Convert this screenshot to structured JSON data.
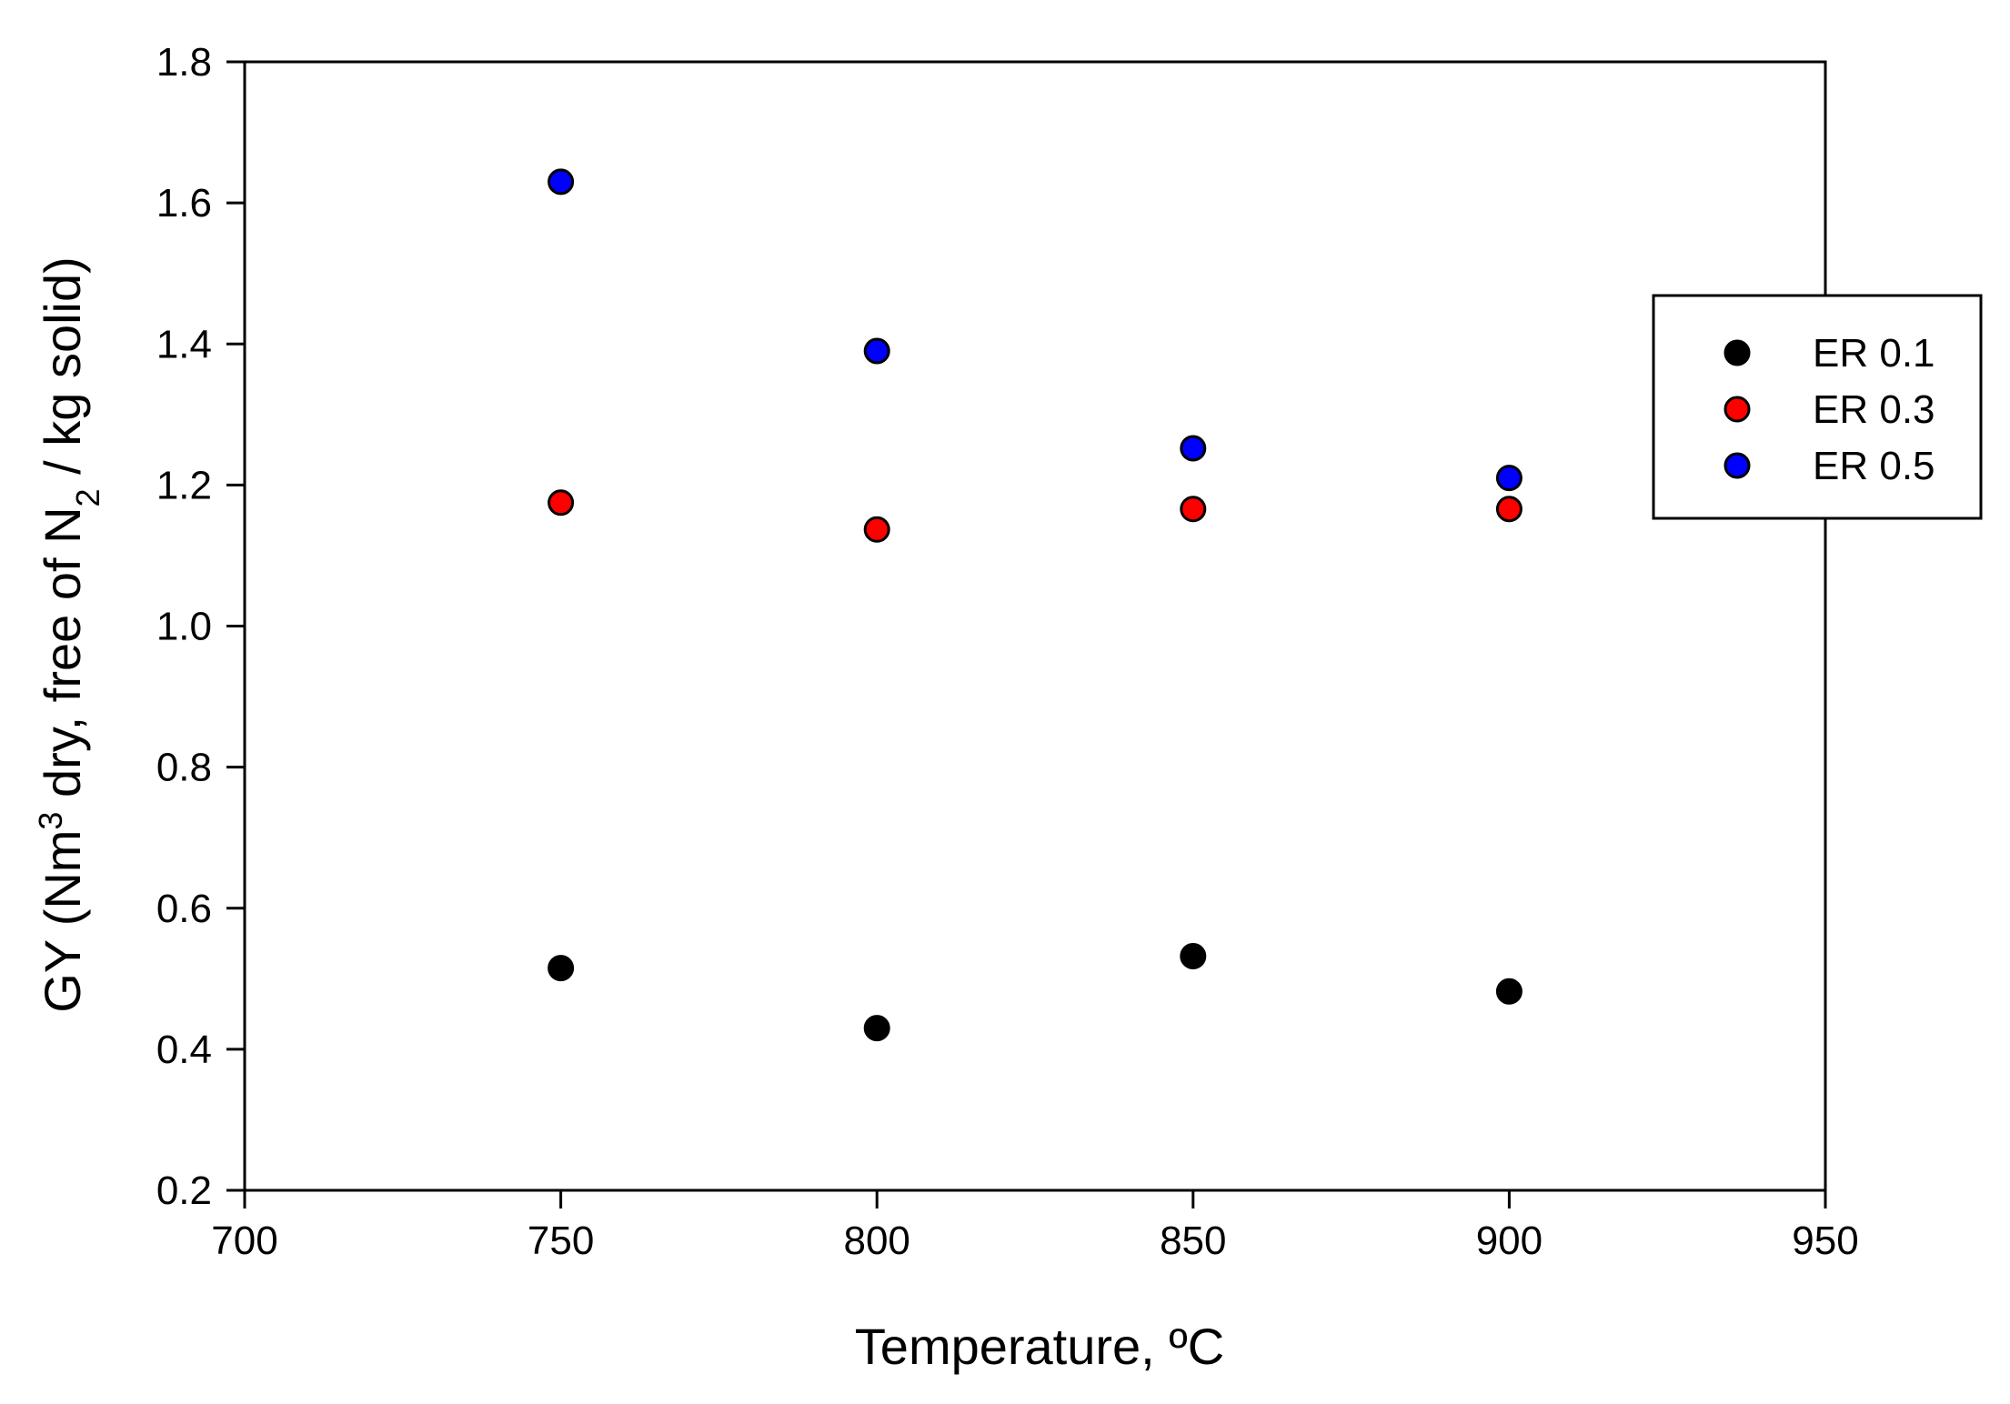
{
  "chart_data": {
    "type": "scatter",
    "title": "",
    "xlabel": "Temperature, ºC",
    "ylabel": {
      "parts": [
        {
          "text": "GY (Nm",
          "style": "normal"
        },
        {
          "text": "3",
          "style": "sup"
        },
        {
          "text": " dry, free of N",
          "style": "normal"
        },
        {
          "text": "2",
          "style": "sub"
        },
        {
          "text": " / kg solid)",
          "style": "normal"
        }
      ]
    },
    "xlim": [
      700,
      950
    ],
    "ylim": [
      0.2,
      1.8
    ],
    "x_ticks": [
      700,
      750,
      800,
      850,
      900,
      950
    ],
    "y_ticks": [
      0.2,
      0.4,
      0.6,
      0.8,
      1.0,
      1.2,
      1.4,
      1.6,
      1.8
    ],
    "x_tick_labels": [
      "700",
      "750",
      "800",
      "850",
      "900",
      "950"
    ],
    "y_tick_labels": [
      "0.2",
      "0.4",
      "0.6",
      "0.8",
      "1.0",
      "1.2",
      "1.4",
      "1.6",
      "1.8"
    ],
    "grid": false,
    "legend_position": "right, outside upper",
    "series": [
      {
        "name": "ER 0.1",
        "color": "#000000",
        "x": [
          750,
          800,
          850,
          900
        ],
        "y": [
          0.515,
          0.43,
          0.532,
          0.482
        ]
      },
      {
        "name": "ER 0.3",
        "color": "#ff0000",
        "x": [
          750,
          800,
          850,
          900
        ],
        "y": [
          1.175,
          1.137,
          1.166,
          1.166
        ]
      },
      {
        "name": "ER 0.5",
        "color": "#0000ff",
        "x": [
          750,
          800,
          850,
          900
        ],
        "y": [
          1.63,
          1.39,
          1.252,
          1.21
        ]
      }
    ]
  }
}
